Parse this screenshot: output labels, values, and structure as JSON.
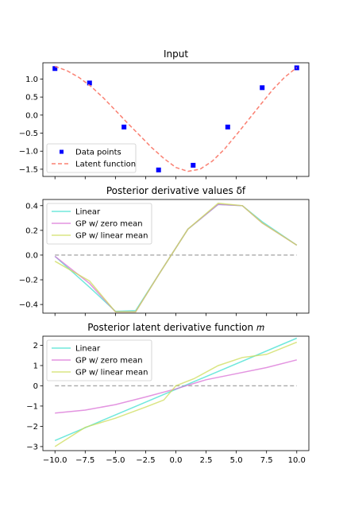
{
  "chart_data": [
    {
      "type": "scatter",
      "title": "Input",
      "xlim": [
        -11,
        11
      ],
      "ylim": [
        -1.7,
        1.45
      ],
      "x_ticks": [
        -10.0,
        -7.5,
        -5.0,
        -2.5,
        0.0,
        2.5,
        5.0,
        7.5,
        10.0
      ],
      "x_ticklabels_shown": false,
      "y_ticks": [
        -1.5,
        -1.0,
        -0.5,
        0.0,
        0.5,
        1.0
      ],
      "y_ticklabels": [
        "−1.5",
        "−1.0",
        "−0.5",
        "0.0",
        "0.5",
        "1.0"
      ],
      "legend": "lower-left",
      "series": [
        {
          "name": "Data points",
          "style": "markers",
          "color": "#0000ff",
          "x": [
            -10.0,
            -7.14,
            -4.29,
            -1.43,
            1.43,
            4.29,
            7.14,
            10.0
          ],
          "y": [
            1.29,
            0.89,
            -0.33,
            -1.52,
            -1.39,
            -0.33,
            0.76,
            1.31
          ]
        },
        {
          "name": "Latent function",
          "style": "dashed",
          "color": "#fa8072",
          "x": [
            -10,
            -9,
            -8,
            -7,
            -6,
            -5,
            -4,
            -3,
            -2,
            -1,
            0,
            1,
            2,
            3,
            4,
            5,
            6,
            7,
            8,
            9,
            10
          ],
          "y": [
            1.35,
            1.23,
            1.04,
            0.79,
            0.48,
            0.13,
            -0.22,
            -0.56,
            -0.9,
            -1.2,
            -1.45,
            -1.56,
            -1.5,
            -1.28,
            -0.95,
            -0.55,
            -0.13,
            0.29,
            0.7,
            1.05,
            1.32
          ]
        }
      ]
    },
    {
      "type": "line",
      "title": "Posterior derivative values δf",
      "xlim": [
        -11,
        11
      ],
      "ylim": [
        -0.47,
        0.45
      ],
      "x_ticks": [
        -10.0,
        -7.5,
        -5.0,
        -2.5,
        0.0,
        2.5,
        5.0,
        7.5,
        10.0
      ],
      "x_ticklabels_shown": false,
      "y_ticks": [
        -0.4,
        -0.2,
        0.0,
        0.2,
        0.4
      ],
      "y_ticklabels": [
        "−0.4",
        "−0.2",
        "0.0",
        "0.2",
        "0.4"
      ],
      "legend": "top-left",
      "reference_line": {
        "y": 0,
        "color": "#aaaaaa",
        "style": "dashed"
      },
      "x": [
        -10.0,
        -7.14,
        -5.0,
        -3.33,
        -1.43,
        1.0,
        3.5,
        5.5,
        7.14,
        10.0
      ],
      "series": [
        {
          "name": "Linear",
          "color": "#40e0d0",
          "y": [
            -0.01,
            -0.26,
            -0.455,
            -0.45,
            -0.16,
            0.21,
            0.41,
            0.4,
            0.27,
            0.08
          ]
        },
        {
          "name": "GP w/ zero mean",
          "color": "#da70d6",
          "y": [
            -0.01,
            -0.23,
            -0.46,
            -0.46,
            -0.16,
            0.21,
            0.41,
            0.4,
            0.26,
            0.08
          ]
        },
        {
          "name": "GP w/ linear mean",
          "color": "#cddc59",
          "y": [
            -0.05,
            -0.21,
            -0.46,
            -0.46,
            -0.16,
            0.21,
            0.42,
            0.4,
            0.26,
            0.08
          ]
        }
      ]
    },
    {
      "type": "line",
      "title": "Posterior latent derivative function 𝑚",
      "xlim": [
        -11,
        11
      ],
      "ylim": [
        -3.2,
        2.45
      ],
      "x_ticks": [
        -10.0,
        -7.5,
        -5.0,
        -2.5,
        0.0,
        2.5,
        5.0,
        7.5,
        10.0
      ],
      "x_ticklabels": [
        "−10.0",
        "−7.5",
        "−5.0",
        "−2.5",
        "0.0",
        "2.5",
        "5.0",
        "7.5",
        "10.0"
      ],
      "y_ticks": [
        -3,
        -2,
        -1,
        0,
        1,
        2
      ],
      "y_ticklabels": [
        "−3",
        "−2",
        "−1",
        "0",
        "1",
        "2"
      ],
      "legend": "top-left",
      "reference_line": {
        "y": 0,
        "color": "#aaaaaa",
        "style": "dashed"
      },
      "series": [
        {
          "name": "Linear",
          "color": "#40e0d0",
          "x": [
            -10,
            10
          ],
          "y": [
            -2.7,
            2.35
          ]
        },
        {
          "name": "GP w/ zero mean",
          "color": "#da70d6",
          "x": [
            -10.0,
            -7.5,
            -5.0,
            -2.5,
            0.0,
            2.5,
            5.0,
            7.5,
            10.0
          ],
          "y": [
            -1.35,
            -1.2,
            -0.93,
            -0.55,
            -0.15,
            0.3,
            0.6,
            0.9,
            1.28
          ]
        },
        {
          "name": "GP w/ linear mean",
          "color": "#cddc59",
          "x": [
            -10.0,
            -7.5,
            -5.0,
            -2.5,
            -1.0,
            0.0,
            1.5,
            3.5,
            5.5,
            7.5,
            10.0
          ],
          "y": [
            -3.0,
            -2.05,
            -1.6,
            -1.05,
            -0.7,
            0.0,
            0.35,
            1.0,
            1.4,
            1.55,
            2.15
          ]
        }
      ]
    }
  ]
}
